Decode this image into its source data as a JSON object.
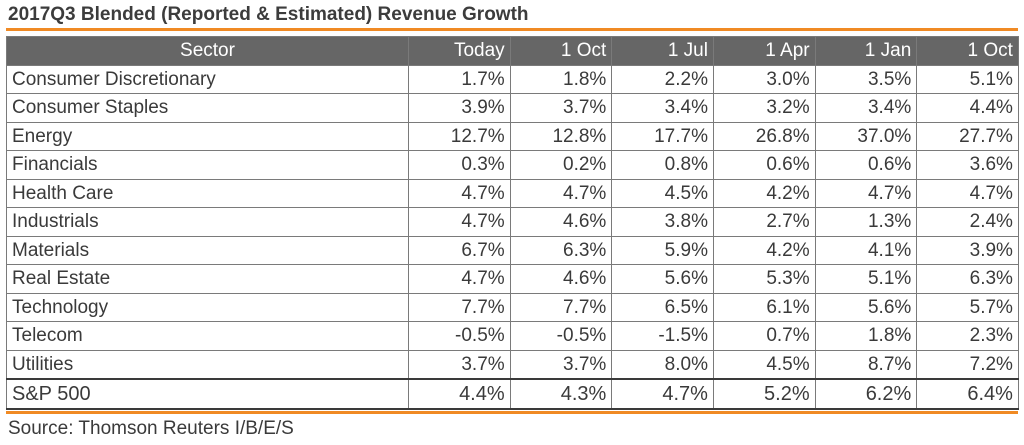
{
  "title": "2017Q3 Blended (Reported & Estimated) Revenue Growth",
  "source": "Source: Thomson Reuters I/B/E/S",
  "colors": {
    "accent_rule": "#f08a24",
    "header_bg": "#666666",
    "header_text": "#ffffff"
  },
  "chart_data": {
    "type": "table",
    "title": "2017Q3 Blended (Reported & Estimated) Revenue Growth",
    "columns": [
      "Sector",
      "Today",
      "1 Oct",
      "1 Jul",
      "1 Apr",
      "1 Jan",
      "1 Oct"
    ],
    "rows": [
      [
        "Consumer Discretionary",
        "1.7%",
        "1.8%",
        "2.2%",
        "3.0%",
        "3.5%",
        "5.1%"
      ],
      [
        "Consumer Staples",
        "3.9%",
        "3.7%",
        "3.4%",
        "3.2%",
        "3.4%",
        "4.4%"
      ],
      [
        "Energy",
        "12.7%",
        "12.8%",
        "17.7%",
        "26.8%",
        "37.0%",
        "27.7%"
      ],
      [
        "Financials",
        "0.3%",
        "0.2%",
        "0.8%",
        "0.6%",
        "0.6%",
        "3.6%"
      ],
      [
        "Health Care",
        "4.7%",
        "4.7%",
        "4.5%",
        "4.2%",
        "4.7%",
        "4.7%"
      ],
      [
        "Industrials",
        "4.7%",
        "4.6%",
        "3.8%",
        "2.7%",
        "1.3%",
        "2.4%"
      ],
      [
        "Materials",
        "6.7%",
        "6.3%",
        "5.9%",
        "4.2%",
        "4.1%",
        "3.9%"
      ],
      [
        "Real Estate",
        "4.7%",
        "4.6%",
        "5.6%",
        "5.3%",
        "5.1%",
        "6.3%"
      ],
      [
        "Technology",
        "7.7%",
        "7.7%",
        "6.5%",
        "6.1%",
        "5.6%",
        "5.7%"
      ],
      [
        "Telecom",
        "-0.5%",
        "-0.5%",
        "-1.5%",
        "0.7%",
        "1.8%",
        "2.3%"
      ],
      [
        "Utilities",
        "3.7%",
        "3.7%",
        "8.0%",
        "4.5%",
        "8.7%",
        "7.2%"
      ]
    ],
    "total_row": [
      "S&P 500",
      "4.4%",
      "4.3%",
      "4.7%",
      "5.2%",
      "6.2%",
      "6.4%"
    ]
  }
}
